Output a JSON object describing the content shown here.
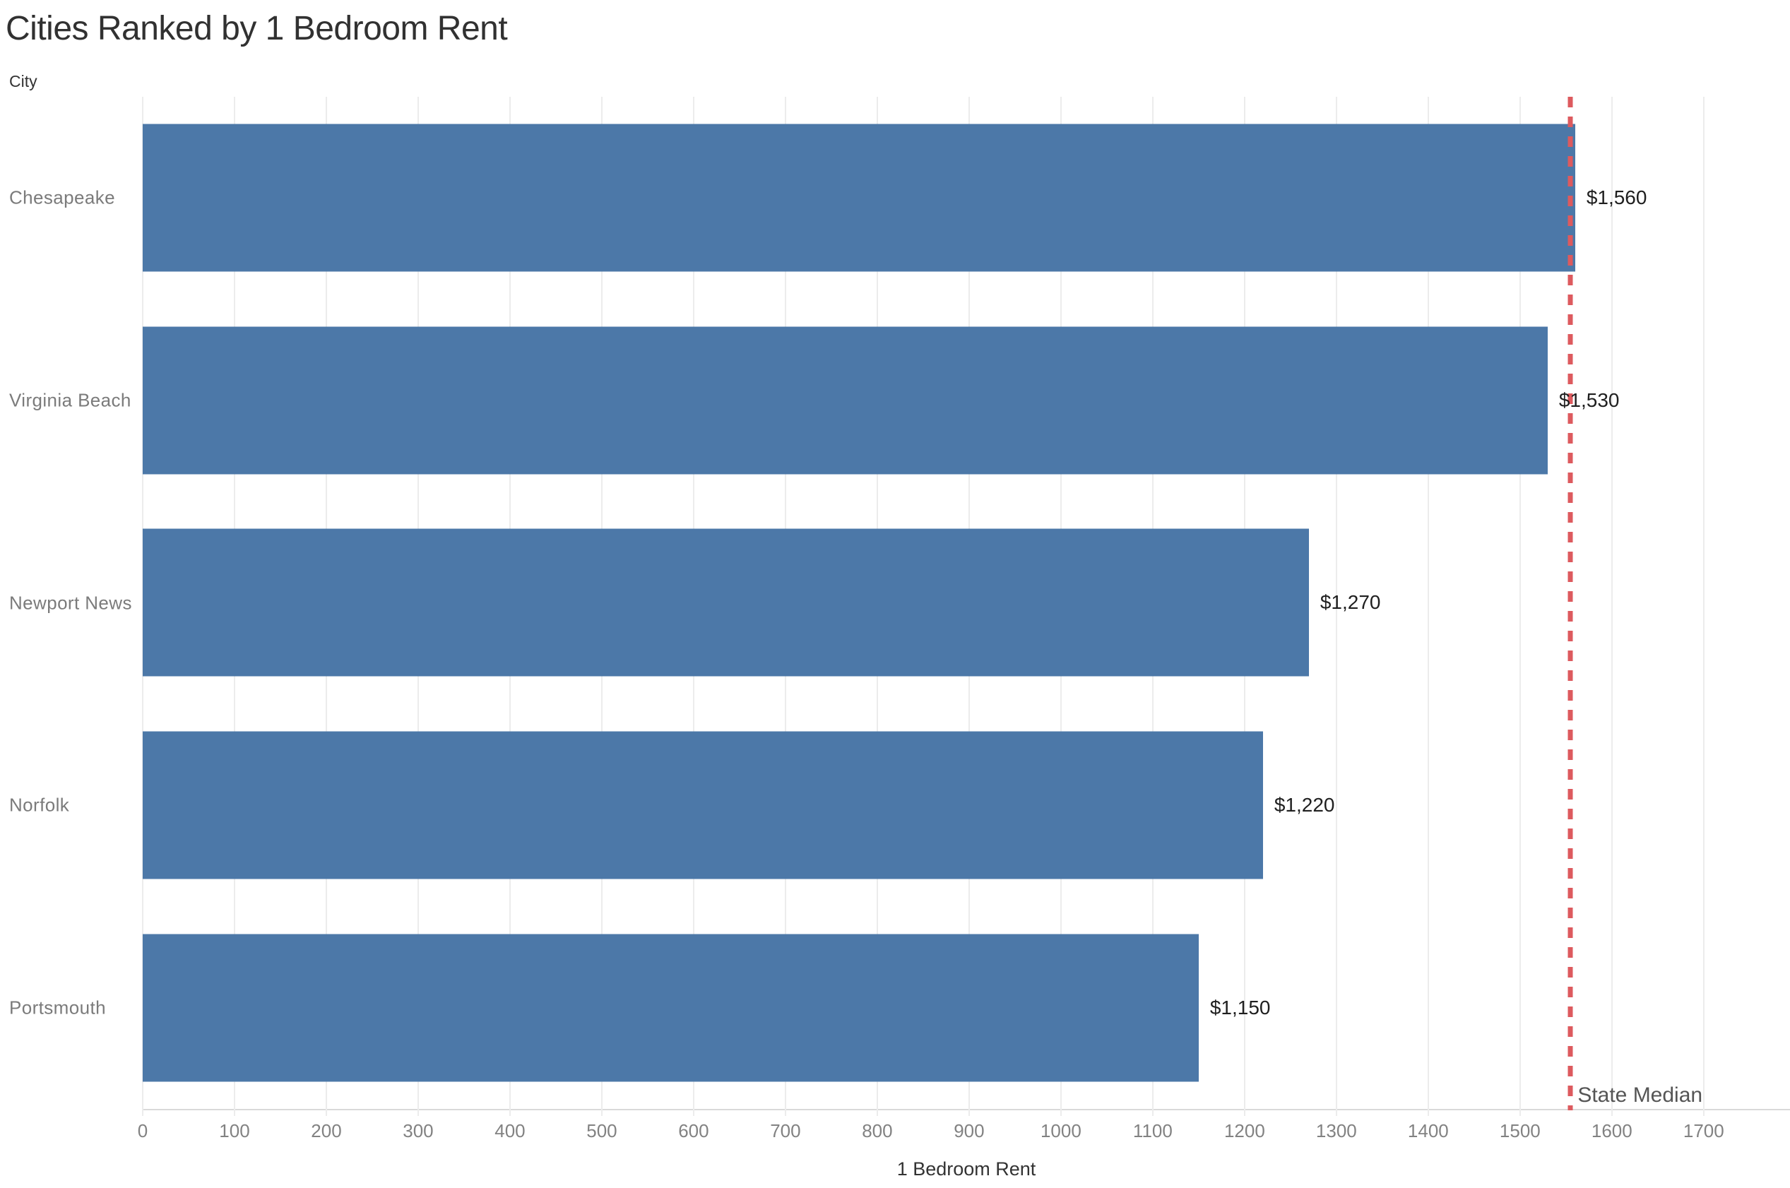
{
  "chart_data": {
    "type": "bar",
    "orientation": "horizontal",
    "title": "Cities Ranked by 1 Bedroom Rent",
    "categories": [
      "Chesapeake",
      "Virginia Beach",
      "Newport News",
      "Norfolk",
      "Portsmouth"
    ],
    "values": [
      1560,
      1530,
      1270,
      1220,
      1150
    ],
    "value_labels": [
      "$1,560",
      "$1,530",
      "$1,270",
      "$1,220",
      "$1,150"
    ],
    "xlabel": "1 Bedroom Rent",
    "ylabel": "City",
    "x_ticks": [
      0,
      100,
      200,
      300,
      400,
      500,
      600,
      700,
      800,
      900,
      1000,
      1100,
      1200,
      1300,
      1400,
      1500,
      1600,
      1700
    ],
    "xlim": [
      0,
      1794
    ],
    "grid": "vertical-only",
    "legend": "none",
    "bar_color": "#4c78a8",
    "gridline_color": "#ececec",
    "axis_line_color": "#d9d9d9",
    "reference_line": {
      "label": "State Median",
      "value": 1555,
      "style": "dashed",
      "color": "#dd5a5e"
    }
  }
}
